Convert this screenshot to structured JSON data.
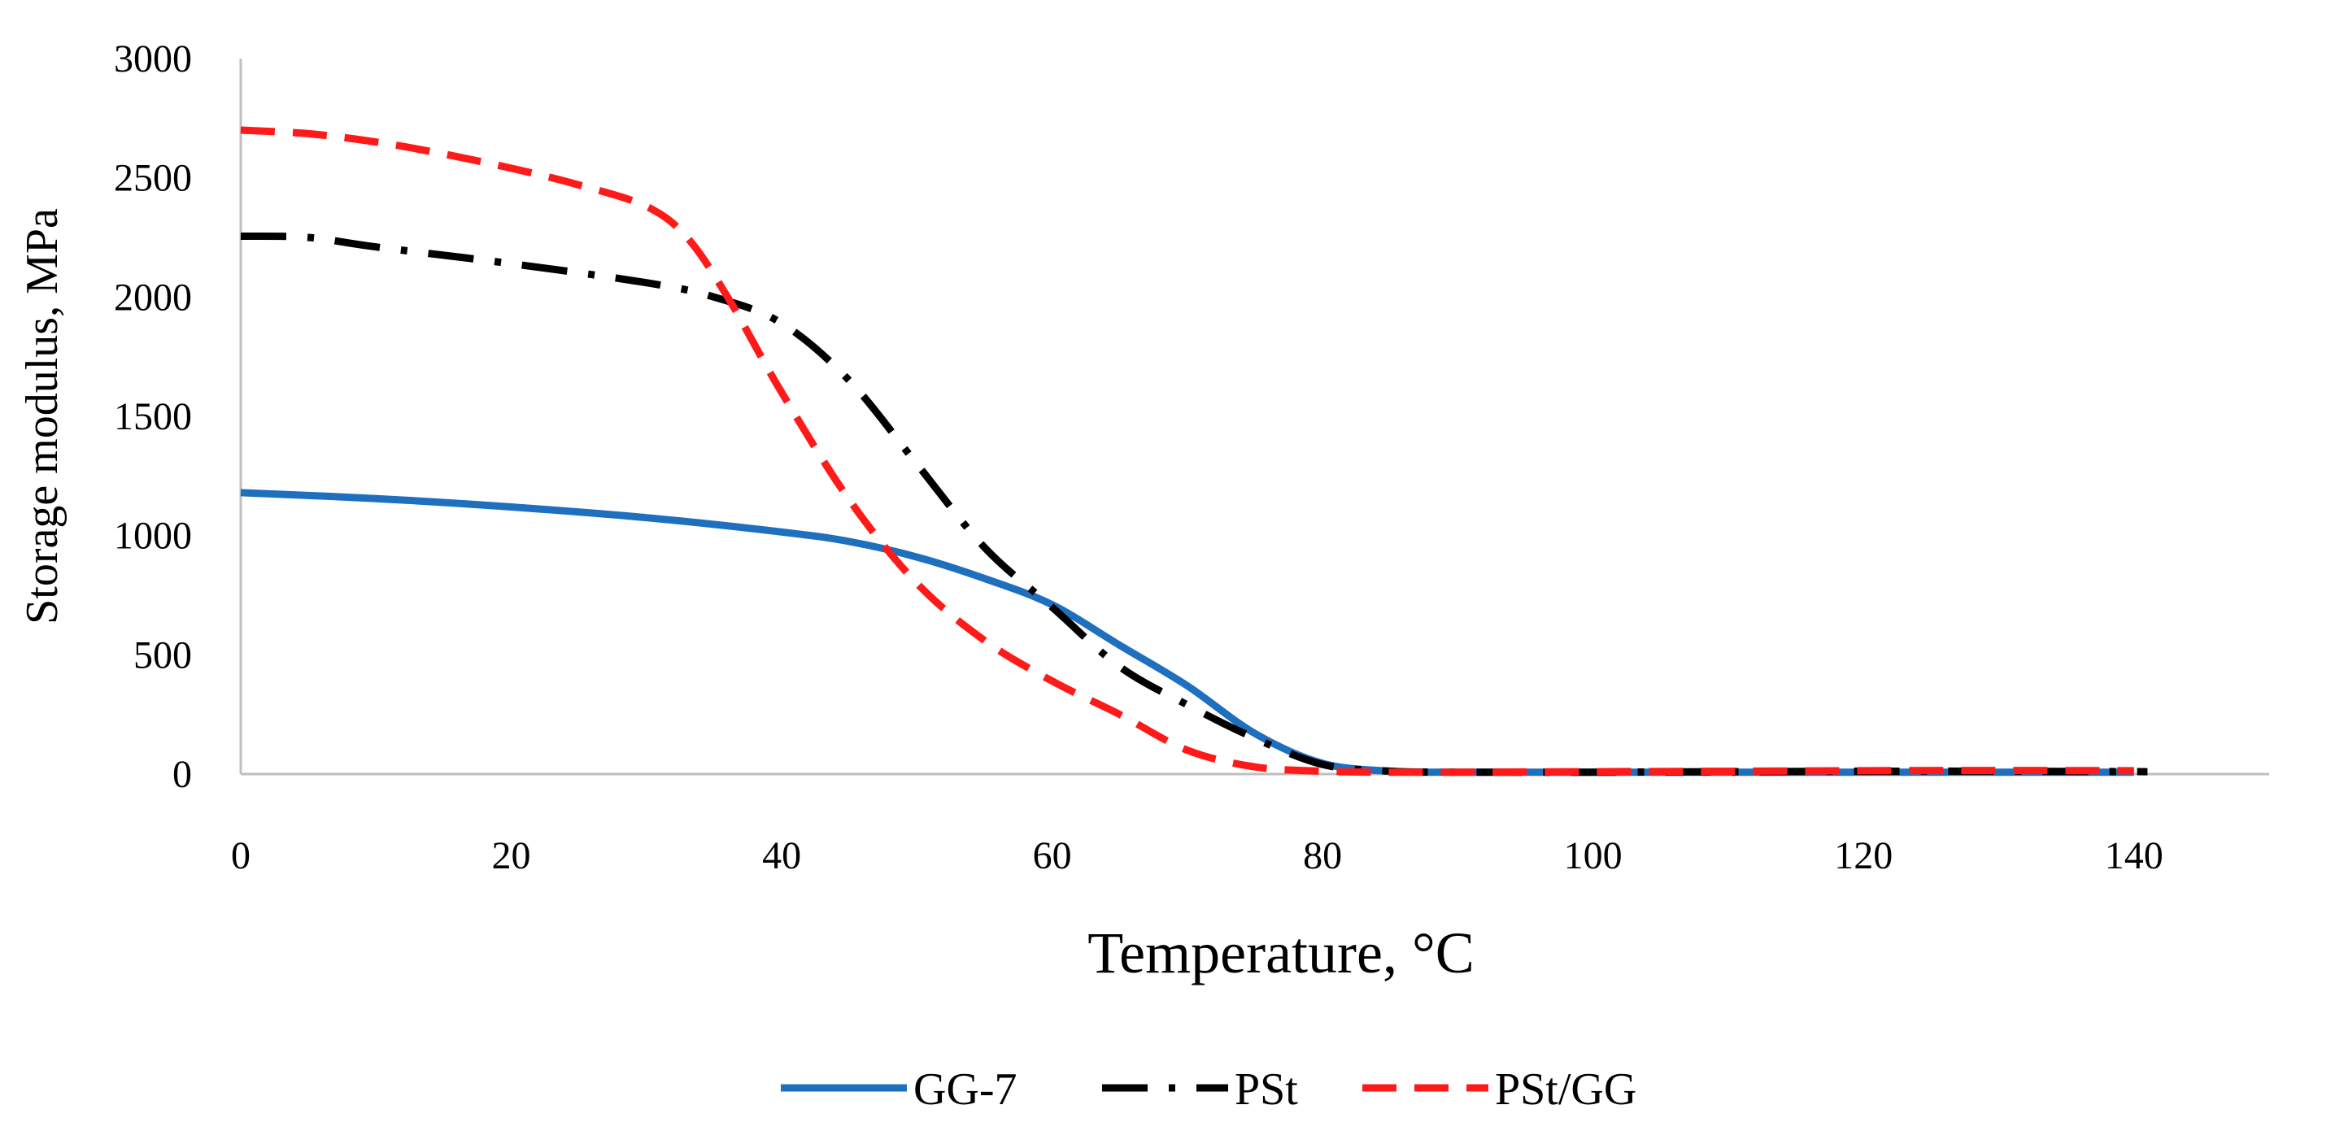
{
  "chart_data": {
    "type": "line",
    "title": "",
    "xlabel": "Temperature, °C",
    "ylabel": "Storage modulus,  MPa",
    "xlim": [
      0,
      150
    ],
    "ylim": [
      0,
      3000
    ],
    "xticks": [
      0,
      20,
      40,
      60,
      80,
      100,
      120,
      140
    ],
    "yticks": [
      0,
      500,
      1000,
      1500,
      2000,
      2500,
      3000
    ],
    "grid": false,
    "legend_position": "bottom",
    "series": [
      {
        "name": "GG-7",
        "color": "#1f6fbf",
        "style": "solid",
        "x": [
          0,
          10,
          20,
          30,
          40,
          45,
          50,
          55,
          60,
          65,
          70,
          75,
          80,
          85,
          90,
          100,
          110,
          120,
          130,
          140
        ],
        "y": [
          1180,
          1155,
          1120,
          1075,
          1015,
          975,
          910,
          820,
          710,
          540,
          370,
          170,
          45,
          12,
          8,
          8,
          8,
          8,
          8,
          8
        ]
      },
      {
        "name": "PSt",
        "color": "#000000",
        "style": "dashdot",
        "x": [
          0,
          5,
          10,
          20,
          30,
          35,
          40,
          45,
          50,
          55,
          60,
          65,
          70,
          75,
          80,
          85,
          90,
          100,
          110,
          120,
          130,
          141
        ],
        "y": [
          2255,
          2250,
          2210,
          2140,
          2060,
          2000,
          1890,
          1650,
          1300,
          950,
          700,
          450,
          290,
          150,
          40,
          12,
          8,
          8,
          10,
          12,
          12,
          10
        ]
      },
      {
        "name": "PSt/GG",
        "color": "#ff1a1a",
        "style": "dashed",
        "x": [
          0,
          5,
          10,
          15,
          20,
          25,
          30,
          33,
          36,
          40,
          45,
          50,
          55,
          60,
          65,
          70,
          75,
          80,
          85,
          90,
          100,
          110,
          120,
          130,
          140
        ],
        "y": [
          2700,
          2685,
          2650,
          2600,
          2540,
          2470,
          2380,
          2250,
          2000,
          1600,
          1150,
          800,
          560,
          390,
          250,
          100,
          30,
          12,
          8,
          8,
          10,
          12,
          14,
          15,
          14
        ]
      }
    ]
  }
}
